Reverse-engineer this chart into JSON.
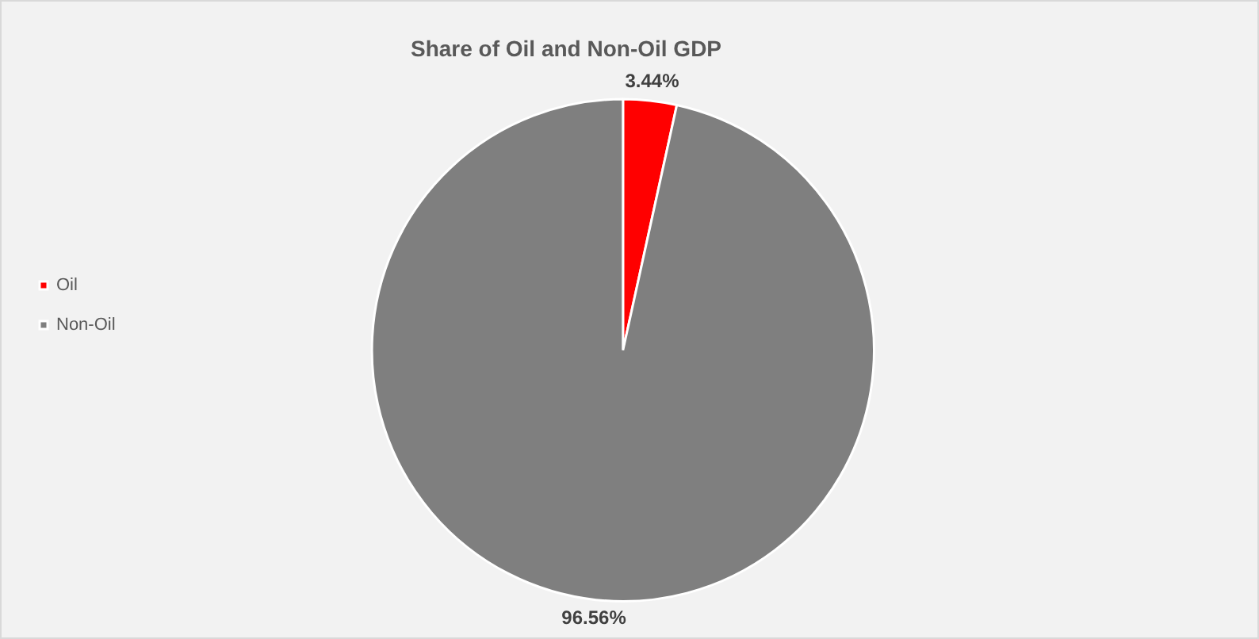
{
  "chart_data": {
    "type": "pie",
    "title": "Share of Oil and Non-Oil GDP",
    "categories": [
      "Oil",
      "Non-Oil"
    ],
    "values": [
      3.44,
      96.56
    ],
    "colors": [
      "#ff0000",
      "#7f7f7f"
    ],
    "value_labels": [
      "3.44%",
      "96.56%"
    ],
    "legend": "left"
  }
}
